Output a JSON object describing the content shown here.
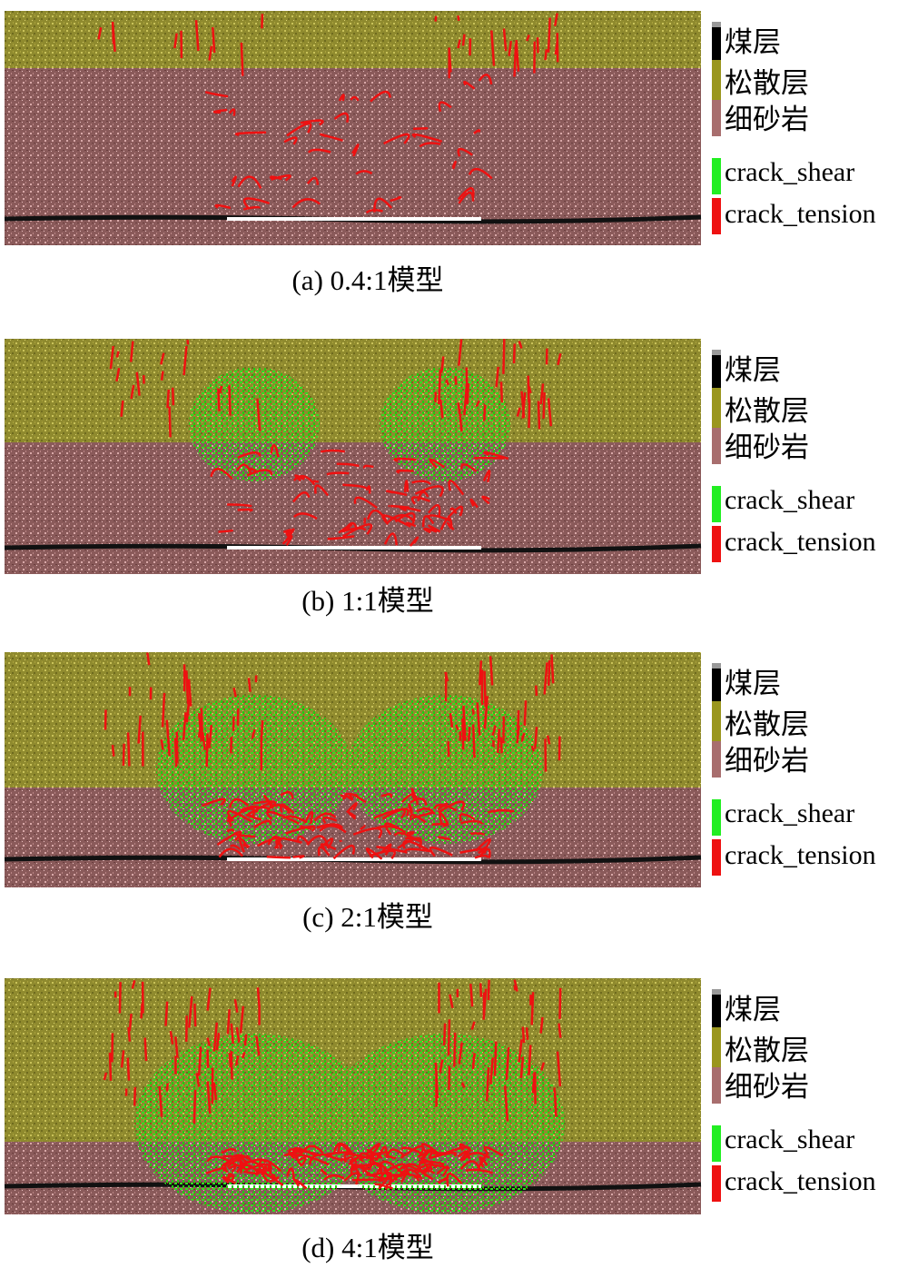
{
  "panels": [
    {
      "caption": "(a) 0.4:1模型",
      "legend": [
        "煤层",
        "松散层",
        "细砂岩",
        "crack_shear",
        "crack_tension"
      ]
    },
    {
      "caption": "(b) 1:1模型",
      "legend": [
        "煤层",
        "松散层",
        "细砂岩",
        "crack_shear",
        "crack_tension"
      ]
    },
    {
      "caption": "(c) 2:1模型",
      "legend": [
        "煤层",
        "松散层",
        "细砂岩",
        "crack_shear",
        "crack_tension"
      ]
    },
    {
      "caption": "(d) 4:1模型",
      "legend": [
        "煤层",
        "松散层",
        "细砂岩",
        "crack_shear",
        "crack_tension"
      ]
    }
  ]
}
